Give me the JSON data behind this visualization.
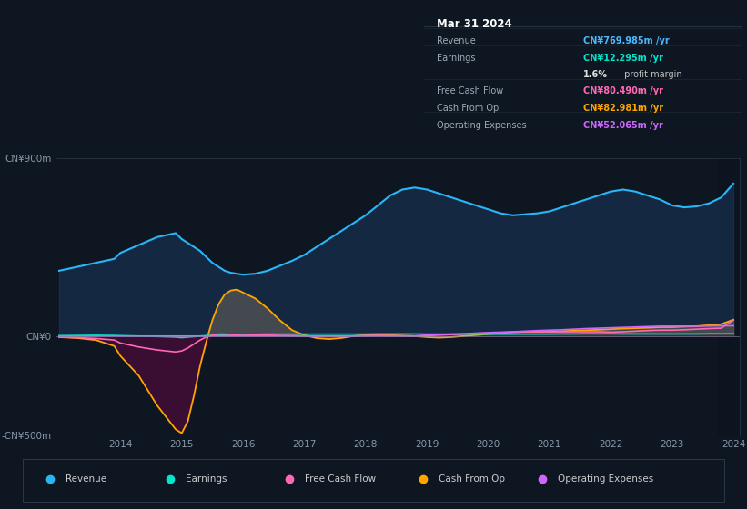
{
  "bg_color": "#0e1621",
  "chart_bg": "#0e1621",
  "panel_bg": "#000000",
  "title": "Mar 31 2024",
  "years": [
    2013.0,
    2013.3,
    2013.6,
    2013.9,
    2014.0,
    2014.3,
    2014.6,
    2014.9,
    2015.0,
    2015.1,
    2015.2,
    2015.3,
    2015.4,
    2015.5,
    2015.6,
    2015.7,
    2015.8,
    2015.9,
    2016.0,
    2016.2,
    2016.4,
    2016.6,
    2016.8,
    2017.0,
    2017.2,
    2017.4,
    2017.6,
    2017.8,
    2018.0,
    2018.2,
    2018.4,
    2018.6,
    2018.8,
    2019.0,
    2019.2,
    2019.4,
    2019.6,
    2019.8,
    2020.0,
    2020.2,
    2020.4,
    2020.6,
    2020.8,
    2021.0,
    2021.2,
    2021.4,
    2021.6,
    2021.8,
    2022.0,
    2022.2,
    2022.4,
    2022.6,
    2022.8,
    2023.0,
    2023.2,
    2023.4,
    2023.6,
    2023.8,
    2024.0
  ],
  "revenue": [
    330,
    350,
    370,
    390,
    420,
    460,
    500,
    520,
    490,
    470,
    450,
    430,
    400,
    370,
    350,
    330,
    320,
    315,
    310,
    315,
    330,
    355,
    380,
    410,
    450,
    490,
    530,
    570,
    610,
    660,
    710,
    740,
    750,
    740,
    720,
    700,
    680,
    660,
    640,
    620,
    610,
    615,
    620,
    630,
    650,
    670,
    690,
    710,
    730,
    740,
    730,
    710,
    690,
    660,
    650,
    655,
    670,
    700,
    770
  ],
  "earnings": [
    2,
    3,
    4,
    3,
    2,
    0,
    -2,
    -5,
    -8,
    -5,
    -3,
    0,
    2,
    3,
    5,
    6,
    7,
    8,
    8,
    9,
    10,
    10,
    10,
    10,
    10,
    10,
    10,
    10,
    10,
    11,
    11,
    11,
    11,
    10,
    10,
    10,
    10,
    10,
    10,
    10,
    10,
    10,
    10,
    10,
    11,
    11,
    12,
    12,
    12,
    11,
    11,
    11,
    11,
    11,
    11,
    11,
    12,
    12,
    12
  ],
  "free_cash_flow": [
    -5,
    -8,
    -12,
    -20,
    -35,
    -55,
    -70,
    -80,
    -75,
    -60,
    -40,
    -20,
    -5,
    5,
    10,
    10,
    8,
    5,
    3,
    5,
    5,
    3,
    2,
    0,
    -2,
    -3,
    -2,
    0,
    2,
    3,
    2,
    1,
    0,
    2,
    5,
    8,
    10,
    12,
    15,
    18,
    20,
    22,
    22,
    22,
    22,
    22,
    22,
    22,
    20,
    22,
    25,
    28,
    30,
    30,
    32,
    35,
    38,
    40,
    80
  ],
  "cash_from_op": [
    -5,
    -10,
    -20,
    -50,
    -100,
    -200,
    -350,
    -470,
    -490,
    -430,
    -300,
    -150,
    -30,
    80,
    160,
    210,
    230,
    235,
    220,
    190,
    140,
    80,
    30,
    5,
    -10,
    -15,
    -10,
    0,
    5,
    8,
    5,
    2,
    0,
    -5,
    -8,
    -5,
    0,
    5,
    10,
    15,
    20,
    22,
    22,
    22,
    25,
    28,
    30,
    32,
    35,
    38,
    40,
    42,
    45,
    45,
    48,
    50,
    55,
    60,
    83
  ],
  "operating_expenses": [
    0,
    0,
    0,
    0,
    0,
    0,
    0,
    0,
    0,
    0,
    0,
    0,
    0,
    0,
    0,
    0,
    0,
    0,
    0,
    0,
    0,
    0,
    0,
    0,
    0,
    0,
    0,
    0,
    0,
    0,
    0,
    0,
    0,
    5,
    8,
    10,
    12,
    15,
    18,
    20,
    22,
    25,
    28,
    30,
    32,
    35,
    38,
    40,
    42,
    44,
    46,
    48,
    50,
    50,
    50,
    50,
    51,
    52,
    52
  ],
  "revenue_color": "#29b6f6",
  "revenue_fill": "#1a3a5c",
  "earnings_color": "#00e5cc",
  "free_cash_flow_color": "#ff69b4",
  "cash_from_op_color": "#ffa500",
  "cash_from_op_fill_pos": "#404040",
  "cash_from_op_fill_neg": "#3d1a3a",
  "operating_expenses_color": "#cc66ff",
  "ylim_min": -500,
  "ylim_max": 900,
  "yticks": [
    -500,
    0,
    900
  ],
  "ytick_labels": [
    "-CN¥500m",
    "CN¥0",
    "CN¥900m"
  ],
  "xticks": [
    2014,
    2015,
    2016,
    2017,
    2018,
    2019,
    2020,
    2021,
    2022,
    2023,
    2024
  ],
  "legend_items": [
    {
      "label": "Revenue",
      "color": "#29b6f6"
    },
    {
      "label": "Earnings",
      "color": "#00e5cc"
    },
    {
      "label": "Free Cash Flow",
      "color": "#ff69b4"
    },
    {
      "label": "Cash From Op",
      "color": "#ffa500"
    },
    {
      "label": "Operating Expenses",
      "color": "#cc66ff"
    }
  ],
  "shaded_right_start": 2023.75,
  "info_rows": [
    {
      "label": "Revenue",
      "value": "CN¥769.985m /yr",
      "value_color": "#4db8ff"
    },
    {
      "label": "Earnings",
      "value": "CN¥12.295m /yr",
      "value_color": "#00e5cc"
    },
    {
      "label": "",
      "value": "1.6% profit margin",
      "value_color": "#e0e0e0",
      "bold_prefix": "1.6%"
    },
    {
      "label": "Free Cash Flow",
      "value": "CN¥80.490m /yr",
      "value_color": "#ff69b4"
    },
    {
      "label": "Cash From Op",
      "value": "CN¥82.981m /yr",
      "value_color": "#ffa500"
    },
    {
      "label": "Operating Expenses",
      "value": "CN¥52.065m /yr",
      "value_color": "#cc66ff"
    }
  ]
}
